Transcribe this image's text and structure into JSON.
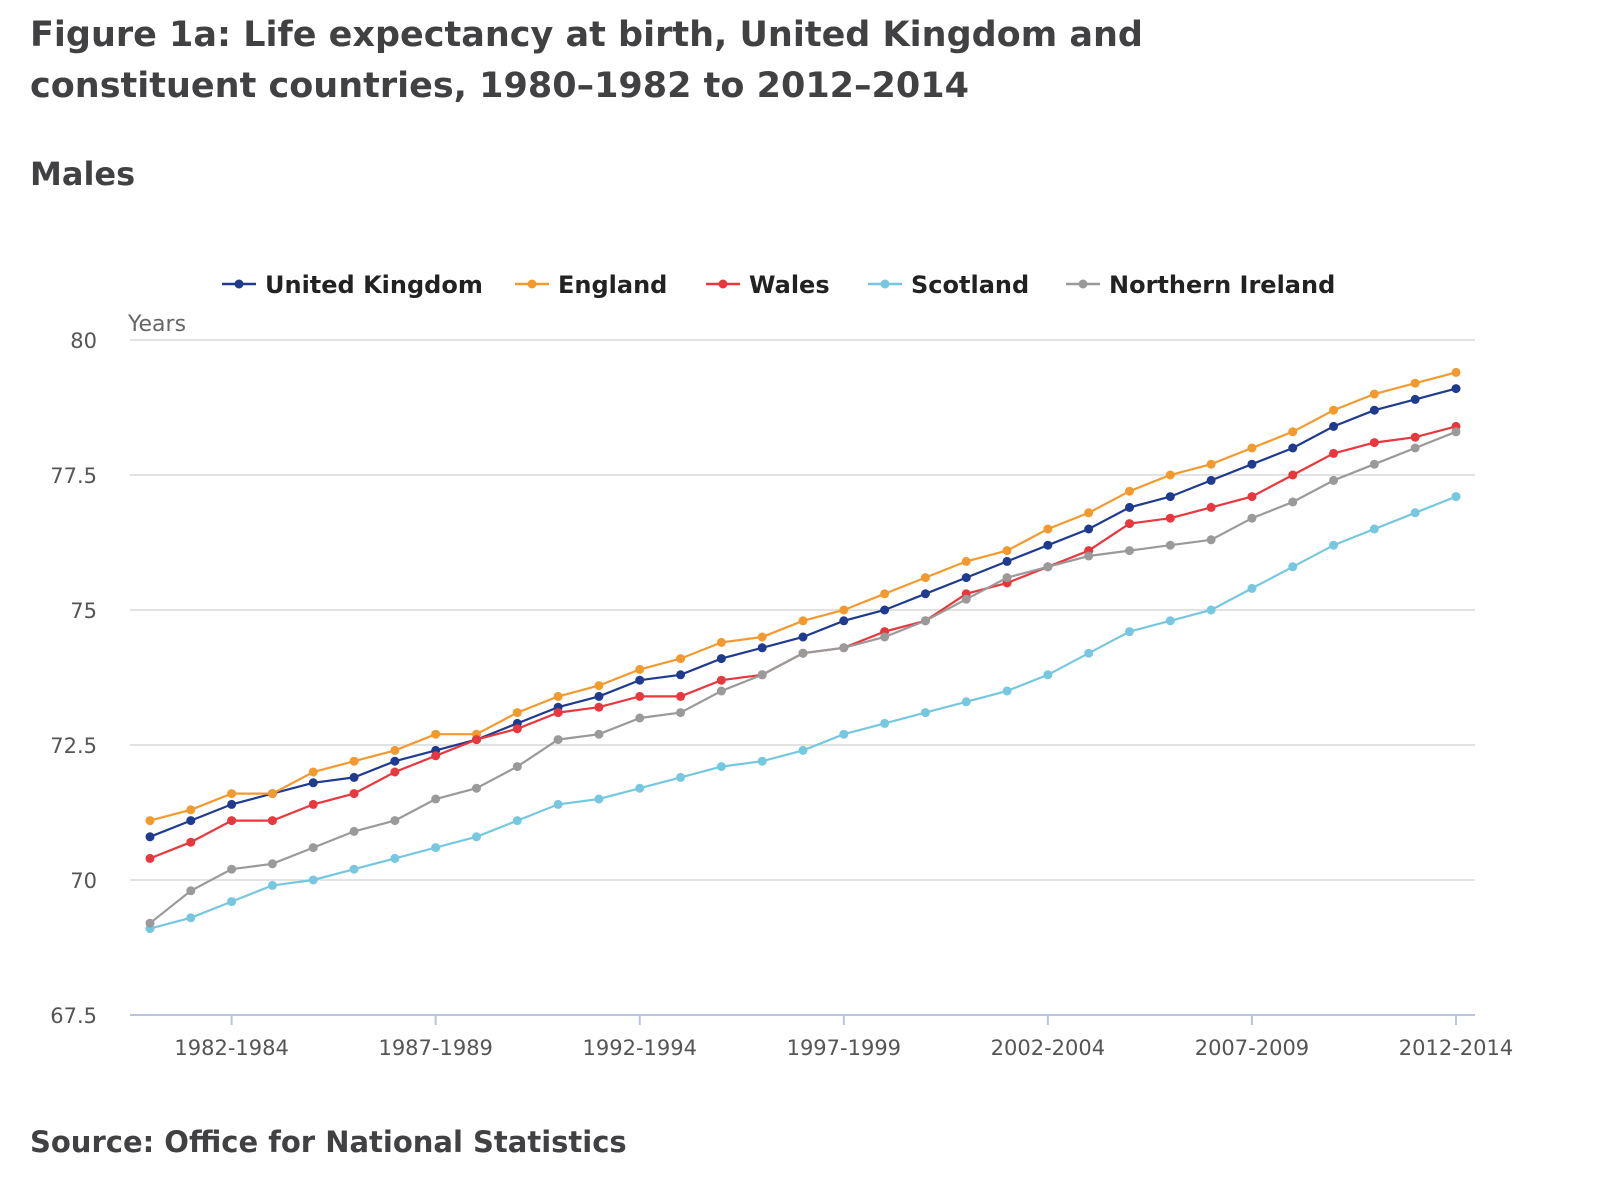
{
  "title": "Figure 1a: Life expectancy at birth, United Kingdom and constituent countries, 1980–1982 to 2012–2014",
  "subtitle": "Males",
  "source": "Source: Office for National Statistics",
  "chart_data": {
    "type": "line",
    "title": "Figure 1a: Life expectancy at birth, United Kingdom and constituent countries, 1980–1982 to 2012–2014",
    "subtitle": "Males",
    "xlabel": "",
    "ylabel": "Years",
    "ylim": [
      67.5,
      80
    ],
    "yticks": [
      "80",
      "77.5",
      "75",
      "72.5",
      "70",
      "67.5"
    ],
    "ytick_values": [
      80,
      77.5,
      75,
      72.5,
      70,
      67.5
    ],
    "legend_position": "top",
    "grid": true,
    "x": [
      "1980-1982",
      "1981-1983",
      "1982-1984",
      "1983-1985",
      "1984-1986",
      "1985-1987",
      "1986-1988",
      "1987-1989",
      "1988-1990",
      "1989-1991",
      "1990-1992",
      "1991-1993",
      "1992-1994",
      "1993-1995",
      "1994-1996",
      "1995-1997",
      "1996-1998",
      "1997-1999",
      "1998-2000",
      "1999-2001",
      "2000-2002",
      "2001-2003",
      "2002-2004",
      "2003-2005",
      "2004-2006",
      "2005-2007",
      "2006-2008",
      "2007-2009",
      "2008-2010",
      "2009-2011",
      "2010-2012",
      "2011-2013",
      "2012-2014"
    ],
    "xticks": [
      {
        "index": 2,
        "label": "1982-1984"
      },
      {
        "index": 7,
        "label": "1987-1989"
      },
      {
        "index": 12,
        "label": "1992-1994"
      },
      {
        "index": 17,
        "label": "1997-1999"
      },
      {
        "index": 22,
        "label": "2002-2004"
      },
      {
        "index": 27,
        "label": "2007-2009"
      },
      {
        "index": 32,
        "label": "2012-2014"
      }
    ],
    "series": [
      {
        "name": "United Kingdom",
        "color": "#1f3b8f",
        "values": [
          70.8,
          71.1,
          71.4,
          71.6,
          71.8,
          71.9,
          72.2,
          72.4,
          72.6,
          72.9,
          73.2,
          73.4,
          73.7,
          73.8,
          74.1,
          74.3,
          74.5,
          74.8,
          75.0,
          75.3,
          75.6,
          75.9,
          76.2,
          76.5,
          76.9,
          77.1,
          77.4,
          77.7,
          78.0,
          78.4,
          78.7,
          78.9,
          79.1
        ]
      },
      {
        "name": "England",
        "color": "#f39a2f",
        "values": [
          71.1,
          71.3,
          71.6,
          71.6,
          72.0,
          72.2,
          72.4,
          72.7,
          72.7,
          73.1,
          73.4,
          73.6,
          73.9,
          74.1,
          74.4,
          74.5,
          74.8,
          75.0,
          75.3,
          75.6,
          75.9,
          76.1,
          76.5,
          76.8,
          77.2,
          77.5,
          77.7,
          78.0,
          78.3,
          78.7,
          79.0,
          79.2,
          79.4
        ]
      },
      {
        "name": "Wales",
        "color": "#e8383d",
        "values": [
          70.4,
          70.7,
          71.1,
          71.1,
          71.4,
          71.6,
          72.0,
          72.3,
          72.6,
          72.8,
          73.1,
          73.2,
          73.4,
          73.4,
          73.7,
          73.8,
          74.2,
          74.3,
          74.6,
          74.8,
          75.3,
          75.5,
          75.8,
          76.1,
          76.6,
          76.7,
          76.9,
          77.1,
          77.5,
          77.9,
          78.1,
          78.2,
          78.4
        ]
      },
      {
        "name": "Scotland",
        "color": "#76c7e0",
        "values": [
          69.1,
          69.3,
          69.6,
          69.9,
          70.0,
          70.2,
          70.4,
          70.6,
          70.8,
          71.1,
          71.4,
          71.5,
          71.7,
          71.9,
          72.1,
          72.2,
          72.4,
          72.7,
          72.9,
          73.1,
          73.3,
          73.5,
          73.8,
          74.2,
          74.6,
          74.8,
          75.0,
          75.4,
          75.8,
          76.2,
          76.5,
          76.8,
          77.1
        ]
      },
      {
        "name": "Northern Ireland",
        "color": "#9a9a9a",
        "values": [
          69.2,
          69.8,
          70.2,
          70.3,
          70.6,
          70.9,
          71.1,
          71.5,
          71.7,
          72.1,
          72.6,
          72.7,
          73.0,
          73.1,
          73.5,
          73.8,
          74.2,
          74.3,
          74.5,
          74.8,
          75.2,
          75.6,
          75.8,
          76.0,
          76.1,
          76.2,
          76.3,
          76.7,
          77.0,
          77.4,
          77.7,
          78.0,
          78.3
        ]
      }
    ]
  }
}
